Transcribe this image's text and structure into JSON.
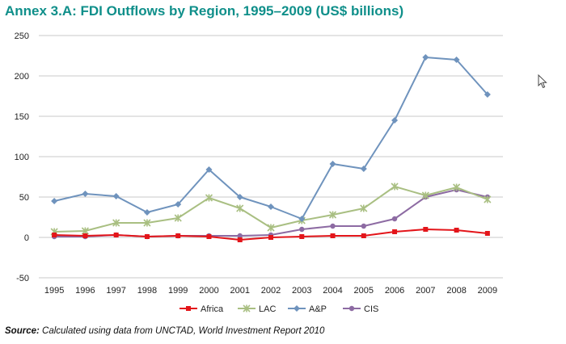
{
  "chart_data": {
    "type": "line",
    "title": "Annex 3.A: FDI Outflows by Region, 1995–2009 (US$ billions)",
    "xlabel": "",
    "ylabel": "",
    "x": [
      "1995",
      "1996",
      "1997",
      "1998",
      "1999",
      "2000",
      "2001",
      "2002",
      "2003",
      "2004",
      "2005",
      "2006",
      "2007",
      "2008",
      "2009"
    ],
    "ylim": [
      -50,
      250
    ],
    "yticks": [
      -50,
      0,
      50,
      100,
      150,
      200,
      250
    ],
    "grid": true,
    "legend_position": "bottom",
    "series": [
      {
        "name": "Africa",
        "color": "#e3151a",
        "marker": "square",
        "values": [
          3,
          2,
          3,
          1,
          2,
          1,
          -3,
          0,
          1,
          2,
          2,
          7,
          10,
          9,
          5
        ]
      },
      {
        "name": "LAC",
        "color": "#a9bf82",
        "marker": "asterisk",
        "values": [
          7,
          8,
          18,
          18,
          24,
          49,
          36,
          12,
          21,
          28,
          36,
          63,
          52,
          62,
          47
        ]
      },
      {
        "name": "A&P",
        "color": "#6f93bd",
        "marker": "diamond",
        "values": [
          45,
          54,
          51,
          31,
          41,
          84,
          50,
          38,
          23,
          91,
          85,
          145,
          223,
          220,
          177
        ]
      },
      {
        "name": "CIS",
        "color": "#8d6ba3",
        "marker": "circle",
        "values": [
          1,
          1,
          3,
          1,
          2,
          2,
          2,
          3,
          10,
          14,
          14,
          23,
          50,
          59,
          50
        ]
      }
    ]
  },
  "source": {
    "label": "Source:",
    "text": "Calculated using data from UNCTAD, World Investment Report 2010"
  }
}
